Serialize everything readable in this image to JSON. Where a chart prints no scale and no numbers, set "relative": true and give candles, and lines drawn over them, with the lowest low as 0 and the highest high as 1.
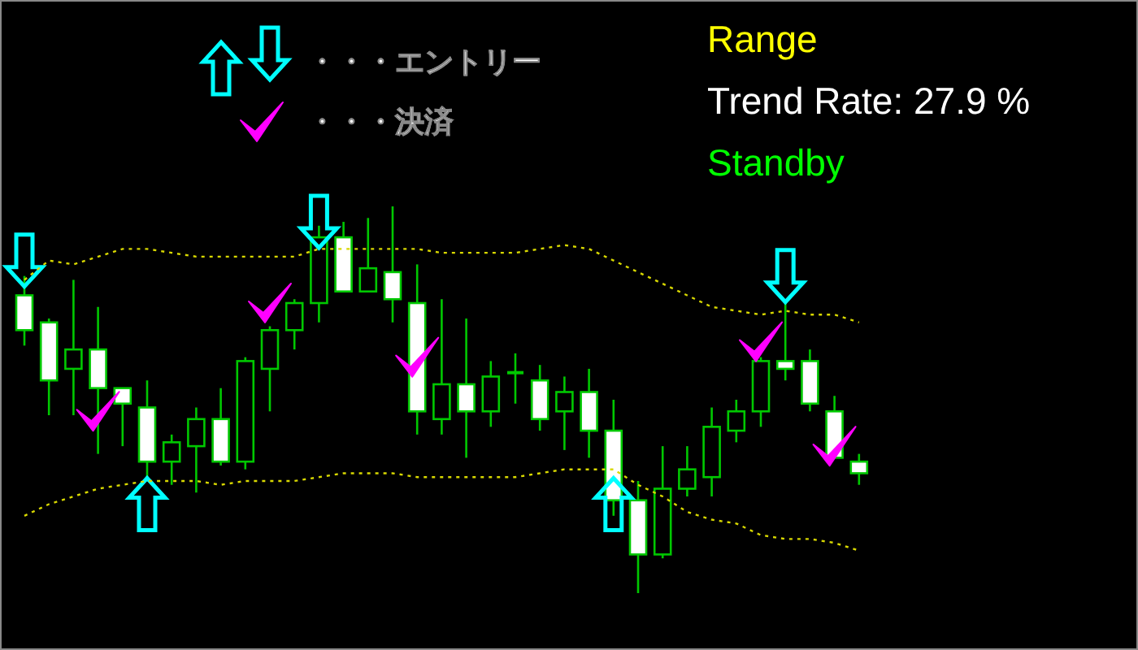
{
  "chart_data": {
    "type": "candlestick",
    "relative": true,
    "title": "Range",
    "subtitle": "Trend Rate: 27.9 %",
    "annotations": [
      "Standby"
    ],
    "legend": "top left",
    "categories": [
      null,
      null,
      null,
      null,
      null,
      null,
      null,
      null,
      null,
      null,
      null,
      null,
      null,
      null,
      null,
      null,
      null,
      null,
      null,
      null,
      null,
      null,
      null,
      null,
      null,
      null,
      null,
      null,
      null,
      null,
      null,
      null,
      null,
      null,
      null
    ],
    "ohlc": [
      [
        0.77,
        0.82,
        0.64,
        0.68
      ],
      [
        0.7,
        0.71,
        0.46,
        0.55
      ],
      [
        0.58,
        0.81,
        0.46,
        0.63
      ],
      [
        0.63,
        0.74,
        0.36,
        0.53
      ],
      [
        0.53,
        0.53,
        0.38,
        0.49
      ],
      [
        0.48,
        0.55,
        0.3,
        0.34
      ],
      [
        0.34,
        0.41,
        0.28,
        0.39
      ],
      [
        0.38,
        0.48,
        0.26,
        0.45
      ],
      [
        0.45,
        0.53,
        0.33,
        0.34
      ],
      [
        0.34,
        0.61,
        0.32,
        0.6
      ],
      [
        0.58,
        0.69,
        0.47,
        0.68
      ],
      [
        0.68,
        0.76,
        0.63,
        0.75
      ],
      [
        0.75,
        0.95,
        0.7,
        0.92
      ],
      [
        0.92,
        0.96,
        0.78,
        0.78
      ],
      [
        0.78,
        0.97,
        0.78,
        0.84
      ],
      [
        0.83,
        1.0,
        0.7,
        0.76
      ],
      [
        0.75,
        0.85,
        0.41,
        0.47
      ],
      [
        0.45,
        0.76,
        0.41,
        0.54
      ],
      [
        0.54,
        0.71,
        0.35,
        0.47
      ],
      [
        0.47,
        0.6,
        0.43,
        0.56
      ],
      [
        0.57,
        0.62,
        0.49,
        0.57
      ],
      [
        0.55,
        0.59,
        0.42,
        0.45
      ],
      [
        0.47,
        0.56,
        0.37,
        0.52
      ],
      [
        0.52,
        0.58,
        0.35,
        0.42
      ],
      [
        0.42,
        0.5,
        0.2,
        0.24
      ],
      [
        0.24,
        0.29,
        0,
        0.1
      ],
      [
        0.1,
        0.38,
        0.09,
        0.27
      ],
      [
        0.27,
        0.38,
        0.25,
        0.32
      ],
      [
        0.3,
        0.48,
        0.25,
        0.43
      ],
      [
        0.42,
        0.5,
        0.39,
        0.47
      ],
      [
        0.47,
        0.61,
        0.43,
        0.6
      ],
      [
        0.6,
        0.75,
        0.55,
        0.58
      ],
      [
        0.6,
        0.63,
        0.47,
        0.49
      ],
      [
        0.47,
        0.51,
        0.35,
        0.35
      ],
      [
        0.34,
        0.36,
        0.28,
        0.31
      ]
    ],
    "series": [
      {
        "type": "line",
        "color": "#d8d800",
        "line_style": "dotted",
        "values": [
          0.81,
          0.86,
          0.85,
          0.87,
          0.89,
          0.89,
          0.88,
          0.87,
          0.87,
          0.87,
          0.87,
          0.87,
          0.89,
          0.89,
          0.89,
          0.89,
          0.89,
          0.88,
          0.88,
          0.88,
          0.88,
          0.89,
          0.9,
          0.89,
          0.86,
          0.83,
          0.8,
          0.77,
          0.74,
          0.73,
          0.72,
          0.73,
          0.72,
          0.72,
          0.7
        ]
      },
      {
        "type": "line",
        "color": "#d8d800",
        "line_style": "dotted",
        "values": [
          0.2,
          0.23,
          0.25,
          0.27,
          0.28,
          0.29,
          0.29,
          0.29,
          0.28,
          0.29,
          0.29,
          0.29,
          0.3,
          0.31,
          0.31,
          0.31,
          0.3,
          0.3,
          0.3,
          0.3,
          0.3,
          0.31,
          0.32,
          0.32,
          0.32,
          0.28,
          0.25,
          0.21,
          0.19,
          0.18,
          0.15,
          0.14,
          0.14,
          0.13,
          0.11
        ]
      },
      {
        "type": "scatter",
        "name": "・・・エントリー",
        "color": "#00ffff",
        "values": [
          0.86,
          null,
          null,
          null,
          null,
          0.23,
          null,
          null,
          null,
          null,
          null,
          null,
          0.96,
          null,
          null,
          null,
          null,
          null,
          null,
          null,
          null,
          null,
          null,
          null,
          0.23,
          null,
          null,
          null,
          null,
          null,
          null,
          0.82,
          null,
          null,
          null
        ]
      },
      {
        "type": "scatter",
        "name": "・・・決済",
        "color": "#ff00ff",
        "values": [
          null,
          null,
          null,
          0.47,
          null,
          null,
          null,
          null,
          null,
          null,
          0.75,
          null,
          null,
          null,
          null,
          null,
          0.61,
          null,
          null,
          null,
          null,
          null,
          null,
          null,
          null,
          null,
          null,
          null,
          null,
          null,
          0.65,
          null,
          null,
          0.38,
          null
        ]
      }
    ]
  }
}
